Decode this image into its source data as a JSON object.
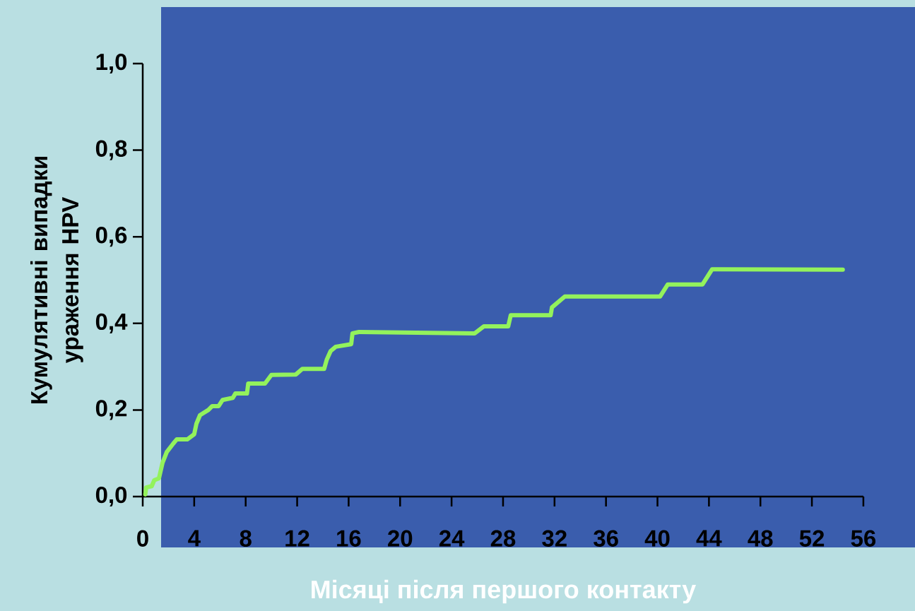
{
  "chart_data": {
    "type": "line",
    "xlabel": "Місяці після першого контакту",
    "ylabel": "Кумулятивні випадки ураження HPV",
    "x": [
      0.2,
      0.27,
      0.7,
      0.9,
      1.26,
      1.54,
      1.87,
      2.36,
      2.64,
      3.46,
      4.0,
      4.17,
      4.45,
      5.1,
      5.4,
      5.9,
      6.2,
      7.0,
      7.2,
      8.1,
      8.2,
      9.5,
      10.0,
      11.9,
      12.4,
      14.1,
      14.3,
      14.6,
      15.0,
      16.2,
      16.3,
      16.8,
      25.8,
      26.5,
      28.4,
      28.6,
      31.7,
      31.8,
      32.8,
      40.2,
      40.8,
      43.5,
      44.25,
      54.4
    ],
    "series": [
      {
        "color": "#93f25c",
        "values": [
          0.005,
          0.021,
          0.024,
          0.038,
          0.042,
          0.078,
          0.103,
          0.122,
          0.132,
          0.132,
          0.144,
          0.168,
          0.188,
          0.2,
          0.209,
          0.209,
          0.223,
          0.228,
          0.238,
          0.238,
          0.261,
          0.261,
          0.281,
          0.282,
          0.295,
          0.295,
          0.316,
          0.336,
          0.346,
          0.352,
          0.377,
          0.38,
          0.377,
          0.393,
          0.393,
          0.419,
          0.419,
          0.437,
          0.462,
          0.462,
          0.49,
          0.49,
          0.525,
          0.524
        ]
      }
    ],
    "xlim": [
      0,
      56
    ],
    "ylim": [
      0,
      1.0
    ],
    "xticks": [
      0,
      4,
      8,
      12,
      16,
      20,
      24,
      28,
      32,
      36,
      40,
      44,
      48,
      52,
      56
    ],
    "yticks": [
      {
        "value": 0,
        "label": "0,0"
      },
      {
        "value": 0.2,
        "label": "0,2"
      },
      {
        "value": 0.4,
        "label": "0,4"
      },
      {
        "value": 0.6,
        "label": "0,6"
      },
      {
        "value": 0.8,
        "label": "0,8"
      },
      {
        "value": 1.0,
        "label": "1,0"
      }
    ]
  }
}
